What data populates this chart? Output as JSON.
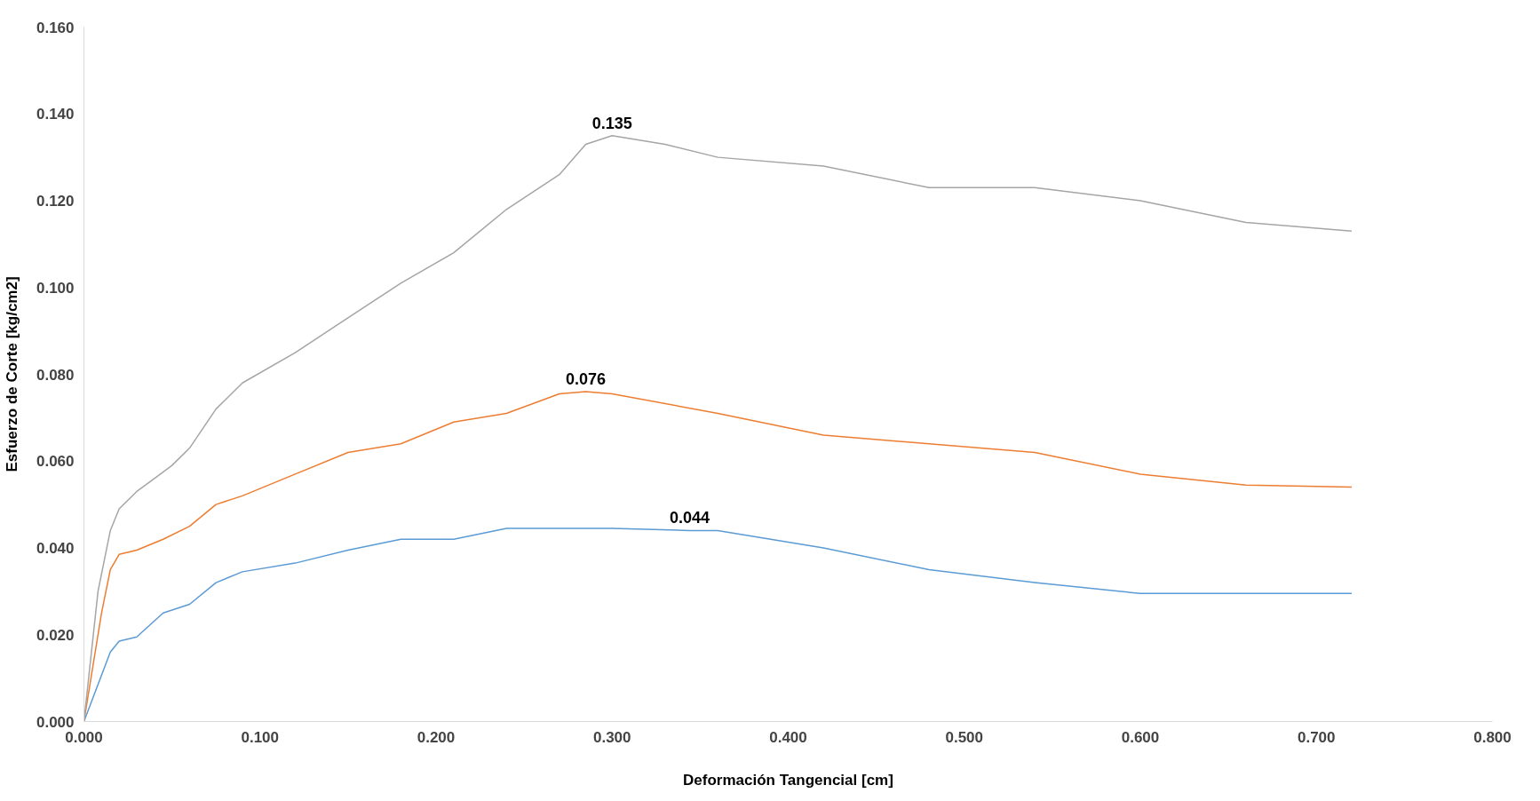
{
  "chart_data": {
    "type": "line",
    "xlabel": "Deformación Tangencial [cm]",
    "ylabel": "Esfuerzo de Corte [kg/cm2]",
    "xlim": [
      0,
      0.8
    ],
    "ylim": [
      0,
      0.16
    ],
    "xticks": [
      {
        "value": 0,
        "label": "0.000"
      },
      {
        "value": 0.1,
        "label": "0.100"
      },
      {
        "value": 0.2,
        "label": "0.200"
      },
      {
        "value": 0.3,
        "label": "0.300"
      },
      {
        "value": 0.4,
        "label": "0.400"
      },
      {
        "value": 0.5,
        "label": "0.500"
      },
      {
        "value": 0.6,
        "label": "0.600"
      },
      {
        "value": 0.7,
        "label": "0.700"
      },
      {
        "value": 0.8,
        "label": "0.800"
      }
    ],
    "yticks": [
      {
        "value": 0,
        "label": "0.000"
      },
      {
        "value": 0.02,
        "label": "0.020"
      },
      {
        "value": 0.04,
        "label": "0.040"
      },
      {
        "value": 0.06,
        "label": "0.060"
      },
      {
        "value": 0.08,
        "label": "0.080"
      },
      {
        "value": 0.1,
        "label": "0.100"
      },
      {
        "value": 0.12,
        "label": "0.120"
      },
      {
        "value": 0.14,
        "label": "0.140"
      },
      {
        "value": 0.16,
        "label": "0.160"
      }
    ],
    "grid": false,
    "marker": "none",
    "line_style": "solid",
    "series": [
      {
        "color": "#5b9bd5",
        "x": [
          0,
          0.015,
          0.02,
          0.03,
          0.045,
          0.06,
          0.075,
          0.09,
          0.12,
          0.15,
          0.18,
          0.21,
          0.24,
          0.27,
          0.3,
          0.344,
          0.36,
          0.42,
          0.48,
          0.54,
          0.6,
          0.66,
          0.72
        ],
        "values": [
          0,
          0.016,
          0.0185,
          0.0195,
          0.025,
          0.027,
          0.032,
          0.0345,
          0.0365,
          0.0395,
          0.042,
          0.042,
          0.0445,
          0.0445,
          0.0445,
          0.044,
          0.044,
          0.04,
          0.035,
          0.032,
          0.0295,
          0.0295,
          0.0295
        ]
      },
      {
        "color": "#ed7d31",
        "x": [
          0,
          0.01,
          0.015,
          0.02,
          0.03,
          0.045,
          0.06,
          0.075,
          0.09,
          0.12,
          0.15,
          0.18,
          0.21,
          0.24,
          0.27,
          0.285,
          0.3,
          0.36,
          0.42,
          0.48,
          0.54,
          0.6,
          0.66,
          0.72
        ],
        "values": [
          0,
          0.025,
          0.035,
          0.0385,
          0.0395,
          0.042,
          0.045,
          0.05,
          0.052,
          0.057,
          0.062,
          0.064,
          0.069,
          0.071,
          0.0755,
          0.076,
          0.0755,
          0.071,
          0.066,
          0.064,
          0.062,
          0.057,
          0.0545,
          0.054
        ]
      },
      {
        "color": "#a5a5a5",
        "x": [
          0,
          0.008,
          0.015,
          0.02,
          0.03,
          0.04,
          0.05,
          0.06,
          0.075,
          0.09,
          0.12,
          0.15,
          0.18,
          0.21,
          0.24,
          0.27,
          0.285,
          0.3,
          0.33,
          0.36,
          0.42,
          0.48,
          0.54,
          0.6,
          0.66,
          0.72
        ],
        "values": [
          0,
          0.03,
          0.044,
          0.049,
          0.053,
          0.056,
          0.059,
          0.063,
          0.072,
          0.078,
          0.085,
          0.093,
          0.101,
          0.108,
          0.118,
          0.126,
          0.133,
          0.135,
          0.133,
          0.13,
          0.128,
          0.123,
          0.123,
          0.12,
          0.115,
          0.113
        ]
      }
    ],
    "annotations": [
      {
        "text": "0.044",
        "x": 0.344,
        "y": 0.044
      },
      {
        "text": "0.076",
        "x": 0.285,
        "y": 0.076
      },
      {
        "text": "0.135",
        "x": 0.3,
        "y": 0.135
      }
    ]
  }
}
